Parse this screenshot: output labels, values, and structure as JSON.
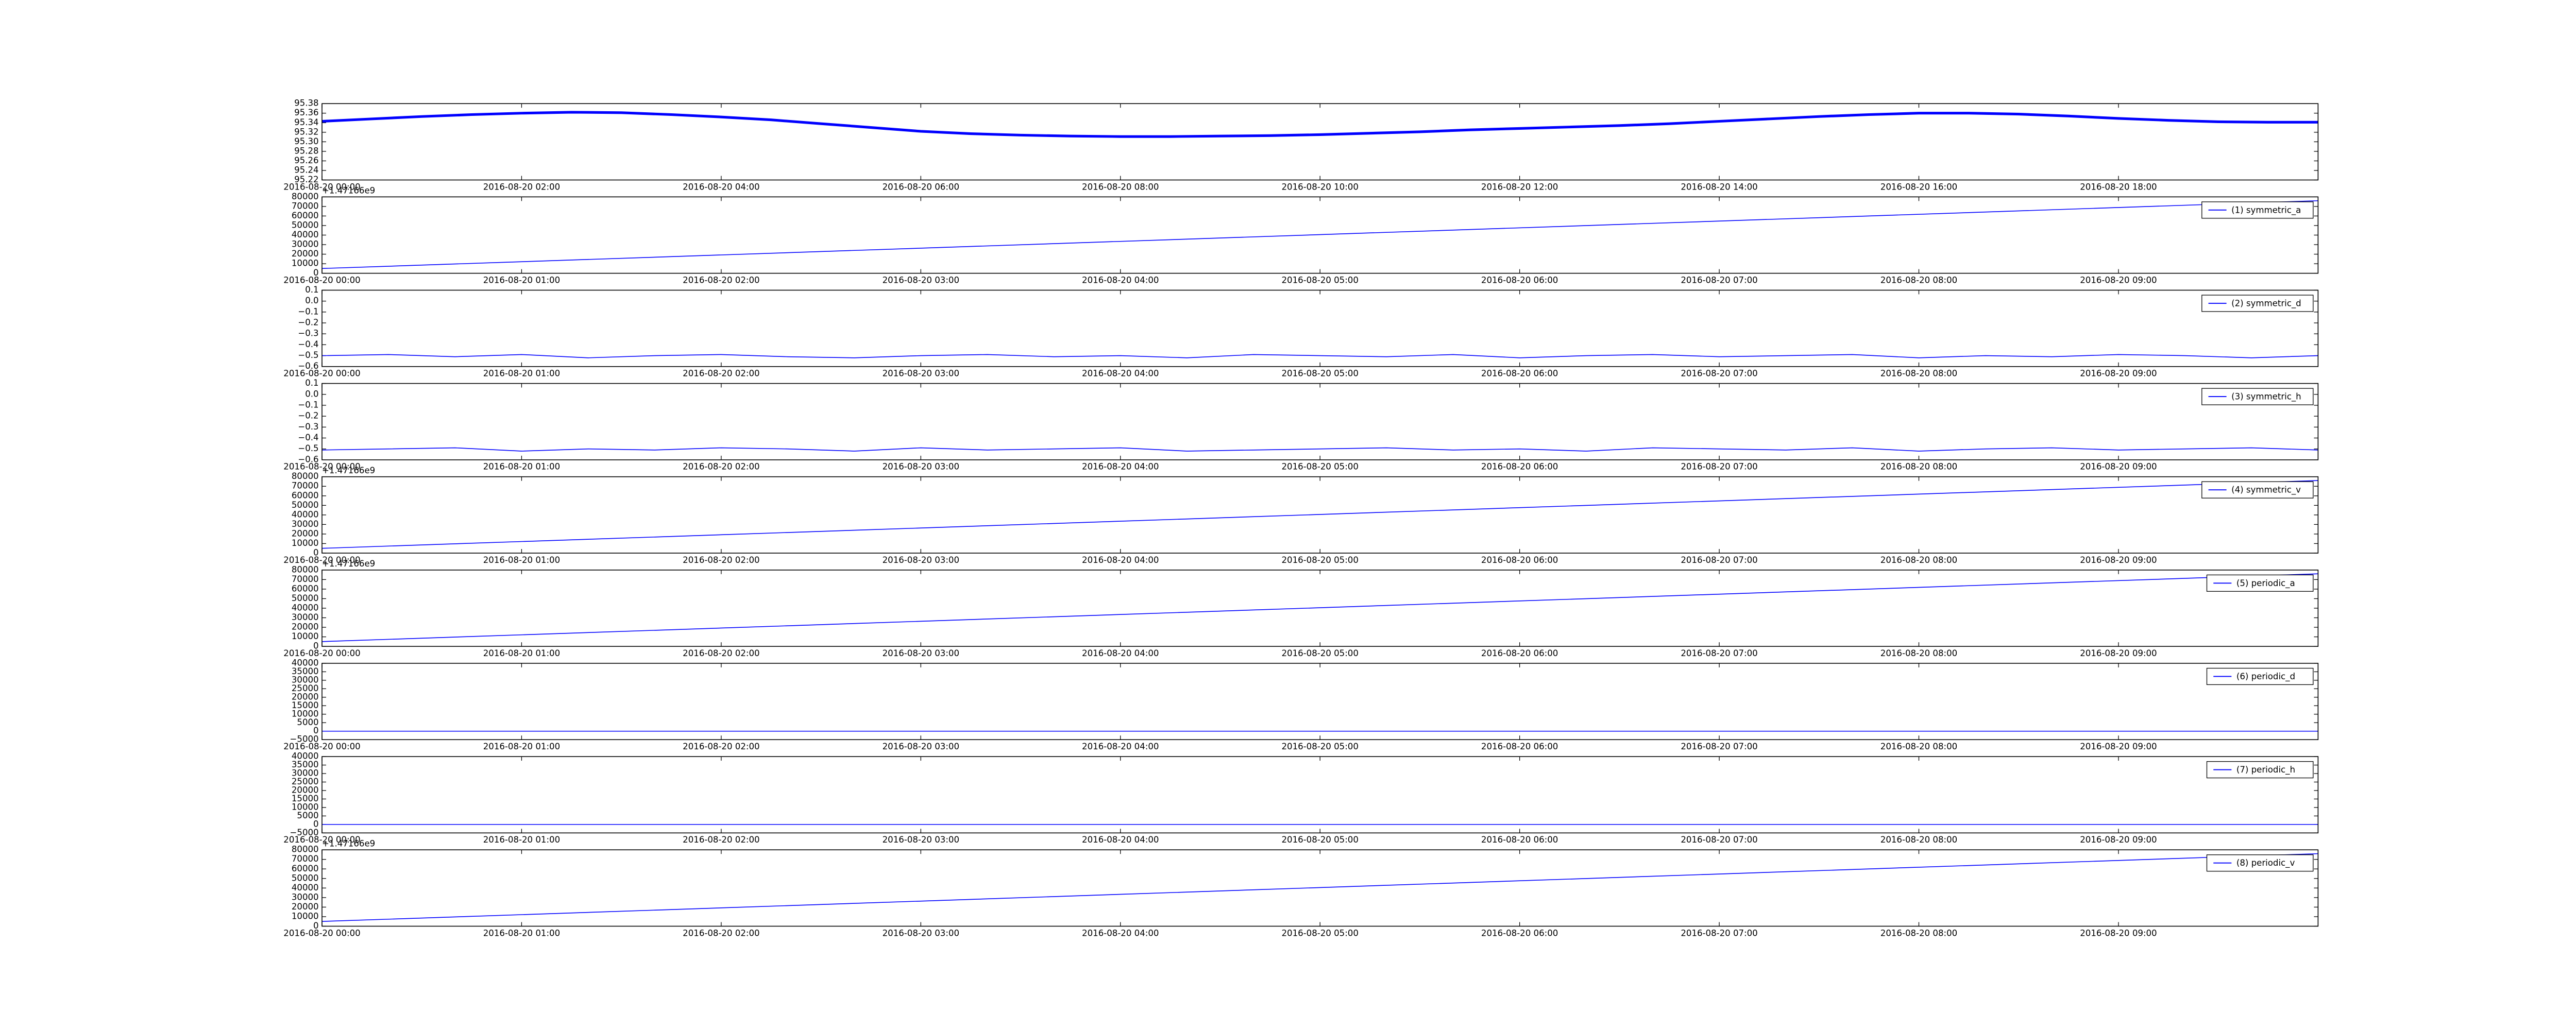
{
  "chart_data": [
    {
      "type": "line",
      "x": [
        "2016-08-20 00:00",
        "2016-08-20 00:30",
        "2016-08-20 01:00",
        "2016-08-20 01:30",
        "2016-08-20 02:00",
        "2016-08-20 02:30",
        "2016-08-20 03:00",
        "2016-08-20 03:30",
        "2016-08-20 04:00",
        "2016-08-20 04:30",
        "2016-08-20 05:00",
        "2016-08-20 05:30",
        "2016-08-20 06:00",
        "2016-08-20 06:30",
        "2016-08-20 07:00",
        "2016-08-20 07:30",
        "2016-08-20 08:00",
        "2016-08-20 08:30",
        "2016-08-20 09:00",
        "2016-08-20 09:30",
        "2016-08-20 10:00",
        "2016-08-20 10:30",
        "2016-08-20 11:00",
        "2016-08-20 11:30",
        "2016-08-20 12:00",
        "2016-08-20 12:30",
        "2016-08-20 13:00",
        "2016-08-20 13:30",
        "2016-08-20 14:00",
        "2016-08-20 14:30",
        "2016-08-20 15:00",
        "2016-08-20 15:30",
        "2016-08-20 16:00",
        "2016-08-20 16:30",
        "2016-08-20 17:00",
        "2016-08-20 17:30",
        "2016-08-20 18:00",
        "2016-08-20 18:30",
        "2016-08-20 19:00",
        "2016-08-20 19:30",
        "2016-08-20 20:00"
      ],
      "series": [
        {
          "color": "#0000ff",
          "values": [
            95.343,
            95.348,
            95.353,
            95.357,
            95.36,
            95.362,
            95.361,
            95.357,
            95.352,
            95.346,
            95.338,
            95.33,
            95.322,
            95.317,
            95.314,
            95.312,
            95.311,
            95.311,
            95.312,
            95.313,
            95.315,
            95.318,
            95.321,
            95.325,
            95.328,
            95.331,
            95.334,
            95.338,
            95.343,
            95.348,
            95.353,
            95.357,
            95.36,
            95.36,
            95.358,
            95.354,
            95.349,
            95.345,
            95.342,
            95.341,
            95.341
          ]
        }
      ],
      "xlim": [
        "2016-08-20 00:00",
        "2016-08-20 20:00"
      ],
      "xticks": [
        "2016-08-20 00:00",
        "2016-08-20 02:00",
        "2016-08-20 04:00",
        "2016-08-20 06:00",
        "2016-08-20 08:00",
        "2016-08-20 10:00",
        "2016-08-20 12:00",
        "2016-08-20 14:00",
        "2016-08-20 16:00",
        "2016-08-20 18:00"
      ],
      "ylim": [
        95.22,
        95.38
      ],
      "yticks": [
        95.22,
        95.24,
        95.26,
        95.28,
        {
          "value": 95.3,
          "label": "95.30"
        },
        95.32,
        95.34,
        95.36,
        95.38
      ]
    },
    {
      "type": "line",
      "offset_text": "+1.47166e9",
      "x": [
        "2016-08-20 00:00",
        "2016-08-20 10:00"
      ],
      "series": [
        {
          "name": "(1) symmetric_a",
          "color": "#0000ff",
          "values": [
            5000,
            76000
          ]
        }
      ],
      "xlim": [
        "2016-08-20 00:00",
        "2016-08-20 10:00"
      ],
      "xticks": [
        "2016-08-20 00:00",
        "2016-08-20 01:00",
        "2016-08-20 02:00",
        "2016-08-20 03:00",
        "2016-08-20 04:00",
        "2016-08-20 05:00",
        "2016-08-20 06:00",
        "2016-08-20 07:00",
        "2016-08-20 08:00",
        "2016-08-20 09:00"
      ],
      "ylim": [
        0,
        80000
      ],
      "yticks": [
        0,
        10000,
        20000,
        30000,
        40000,
        50000,
        60000,
        70000,
        80000
      ],
      "legend": "upper right"
    },
    {
      "type": "line",
      "x": [
        "2016-08-20 00:00",
        "2016-08-20 00:20",
        "2016-08-20 00:40",
        "2016-08-20 01:00",
        "2016-08-20 01:20",
        "2016-08-20 01:40",
        "2016-08-20 02:00",
        "2016-08-20 02:20",
        "2016-08-20 02:40",
        "2016-08-20 03:00",
        "2016-08-20 03:20",
        "2016-08-20 03:40",
        "2016-08-20 04:00",
        "2016-08-20 04:20",
        "2016-08-20 04:40",
        "2016-08-20 05:00",
        "2016-08-20 05:20",
        "2016-08-20 05:40",
        "2016-08-20 06:00",
        "2016-08-20 06:20",
        "2016-08-20 06:40",
        "2016-08-20 07:00",
        "2016-08-20 07:20",
        "2016-08-20 07:40",
        "2016-08-20 08:00",
        "2016-08-20 08:20",
        "2016-08-20 08:40",
        "2016-08-20 09:00",
        "2016-08-20 09:20",
        "2016-08-20 09:40",
        "2016-08-20 10:00"
      ],
      "series": [
        {
          "name": "(2) symmetric_d",
          "color": "#0000ff",
          "values": [
            -0.5,
            -0.49,
            -0.51,
            -0.49,
            -0.52,
            -0.5,
            -0.49,
            -0.51,
            -0.52,
            -0.5,
            -0.49,
            -0.51,
            -0.5,
            -0.52,
            -0.49,
            -0.5,
            -0.51,
            -0.49,
            -0.52,
            -0.5,
            -0.49,
            -0.51,
            -0.5,
            -0.49,
            -0.52,
            -0.5,
            -0.51,
            -0.49,
            -0.5,
            -0.52,
            -0.5
          ]
        }
      ],
      "xlim": [
        "2016-08-20 00:00",
        "2016-08-20 10:00"
      ],
      "xticks": [
        "2016-08-20 00:00",
        "2016-08-20 01:00",
        "2016-08-20 02:00",
        "2016-08-20 03:00",
        "2016-08-20 04:00",
        "2016-08-20 05:00",
        "2016-08-20 06:00",
        "2016-08-20 07:00",
        "2016-08-20 08:00",
        "2016-08-20 09:00"
      ],
      "ylim": [
        -0.6,
        0.1
      ],
      "yticks": [
        {
          "value": -0.6,
          "label": "−0.6"
        },
        {
          "value": -0.5,
          "label": "−0.5"
        },
        {
          "value": -0.4,
          "label": "−0.4"
        },
        {
          "value": -0.3,
          "label": "−0.3"
        },
        {
          "value": -0.2,
          "label": "−0.2"
        },
        {
          "value": -0.1,
          "label": "−0.1"
        },
        {
          "value": 0,
          "label": "0.0"
        },
        0.1
      ],
      "legend": "upper right"
    },
    {
      "type": "line",
      "x": [
        "2016-08-20 00:00",
        "2016-08-20 00:20",
        "2016-08-20 00:40",
        "2016-08-20 01:00",
        "2016-08-20 01:20",
        "2016-08-20 01:40",
        "2016-08-20 02:00",
        "2016-08-20 02:20",
        "2016-08-20 02:40",
        "2016-08-20 03:00",
        "2016-08-20 03:20",
        "2016-08-20 03:40",
        "2016-08-20 04:00",
        "2016-08-20 04:20",
        "2016-08-20 04:40",
        "2016-08-20 05:00",
        "2016-08-20 05:20",
        "2016-08-20 05:40",
        "2016-08-20 06:00",
        "2016-08-20 06:20",
        "2016-08-20 06:40",
        "2016-08-20 07:00",
        "2016-08-20 07:20",
        "2016-08-20 07:40",
        "2016-08-20 08:00",
        "2016-08-20 08:20",
        "2016-08-20 08:40",
        "2016-08-20 09:00",
        "2016-08-20 09:20",
        "2016-08-20 09:40",
        "2016-08-20 10:00"
      ],
      "series": [
        {
          "name": "(3) symmetric_h",
          "color": "#0000ff",
          "values": [
            -0.51,
            -0.5,
            -0.49,
            -0.52,
            -0.5,
            -0.51,
            -0.49,
            -0.5,
            -0.52,
            -0.49,
            -0.51,
            -0.5,
            -0.49,
            -0.52,
            -0.51,
            -0.5,
            -0.49,
            -0.51,
            -0.5,
            -0.52,
            -0.49,
            -0.5,
            -0.51,
            -0.49,
            -0.52,
            -0.5,
            -0.49,
            -0.51,
            -0.5,
            -0.49,
            -0.51
          ]
        }
      ],
      "xlim": [
        "2016-08-20 00:00",
        "2016-08-20 10:00"
      ],
      "xticks": [
        "2016-08-20 00:00",
        "2016-08-20 01:00",
        "2016-08-20 02:00",
        "2016-08-20 03:00",
        "2016-08-20 04:00",
        "2016-08-20 05:00",
        "2016-08-20 06:00",
        "2016-08-20 07:00",
        "2016-08-20 08:00",
        "2016-08-20 09:00"
      ],
      "ylim": [
        -0.6,
        0.1
      ],
      "yticks": [
        {
          "value": -0.6,
          "label": "−0.6"
        },
        {
          "value": -0.5,
          "label": "−0.5"
        },
        {
          "value": -0.4,
          "label": "−0.4"
        },
        {
          "value": -0.3,
          "label": "−0.3"
        },
        {
          "value": -0.2,
          "label": "−0.2"
        },
        {
          "value": -0.1,
          "label": "−0.1"
        },
        {
          "value": 0,
          "label": "0.0"
        },
        0.1
      ],
      "legend": "upper right"
    },
    {
      "type": "line",
      "offset_text": "+1.47166e9",
      "x": [
        "2016-08-20 00:00",
        "2016-08-20 10:00"
      ],
      "series": [
        {
          "name": "(4) symmetric_v",
          "color": "#0000ff",
          "values": [
            5000,
            76000
          ]
        }
      ],
      "xlim": [
        "2016-08-20 00:00",
        "2016-08-20 10:00"
      ],
      "xticks": [
        "2016-08-20 00:00",
        "2016-08-20 01:00",
        "2016-08-20 02:00",
        "2016-08-20 03:00",
        "2016-08-20 04:00",
        "2016-08-20 05:00",
        "2016-08-20 06:00",
        "2016-08-20 07:00",
        "2016-08-20 08:00",
        "2016-08-20 09:00"
      ],
      "ylim": [
        0,
        80000
      ],
      "yticks": [
        0,
        10000,
        20000,
        30000,
        40000,
        50000,
        60000,
        70000,
        80000
      ],
      "legend": "upper right"
    },
    {
      "type": "line",
      "offset_text": "+1.47166e9",
      "x": [
        "2016-08-20 00:00",
        "2016-08-20 10:00"
      ],
      "series": [
        {
          "name": "(5) periodic_a",
          "color": "#0000ff",
          "values": [
            5000,
            76000
          ]
        }
      ],
      "xlim": [
        "2016-08-20 00:00",
        "2016-08-20 10:00"
      ],
      "xticks": [
        "2016-08-20 00:00",
        "2016-08-20 01:00",
        "2016-08-20 02:00",
        "2016-08-20 03:00",
        "2016-08-20 04:00",
        "2016-08-20 05:00",
        "2016-08-20 06:00",
        "2016-08-20 07:00",
        "2016-08-20 08:00",
        "2016-08-20 09:00"
      ],
      "ylim": [
        0,
        80000
      ],
      "yticks": [
        0,
        10000,
        20000,
        30000,
        40000,
        50000,
        60000,
        70000,
        80000
      ],
      "legend": "upper right"
    },
    {
      "type": "line",
      "x": [
        "2016-08-20 00:00",
        "2016-08-20 10:00"
      ],
      "series": [
        {
          "name": "(6) periodic_d",
          "color": "#0000ff",
          "values": [
            0,
            0
          ]
        }
      ],
      "xlim": [
        "2016-08-20 00:00",
        "2016-08-20 10:00"
      ],
      "xticks": [
        "2016-08-20 00:00",
        "2016-08-20 01:00",
        "2016-08-20 02:00",
        "2016-08-20 03:00",
        "2016-08-20 04:00",
        "2016-08-20 05:00",
        "2016-08-20 06:00",
        "2016-08-20 07:00",
        "2016-08-20 08:00",
        "2016-08-20 09:00"
      ],
      "ylim": [
        -5000,
        40000
      ],
      "yticks": [
        {
          "value": -5000,
          "label": "−5000"
        },
        0,
        5000,
        10000,
        15000,
        20000,
        25000,
        30000,
        35000,
        40000
      ],
      "legend": "upper right"
    },
    {
      "type": "line",
      "x": [
        "2016-08-20 00:00",
        "2016-08-20 10:00"
      ],
      "series": [
        {
          "name": "(7) periodic_h",
          "color": "#0000ff",
          "values": [
            0,
            0
          ]
        }
      ],
      "xlim": [
        "2016-08-20 00:00",
        "2016-08-20 10:00"
      ],
      "xticks": [
        "2016-08-20 00:00",
        "2016-08-20 01:00",
        "2016-08-20 02:00",
        "2016-08-20 03:00",
        "2016-08-20 04:00",
        "2016-08-20 05:00",
        "2016-08-20 06:00",
        "2016-08-20 07:00",
        "2016-08-20 08:00",
        "2016-08-20 09:00"
      ],
      "ylim": [
        -5000,
        40000
      ],
      "yticks": [
        {
          "value": -5000,
          "label": "−5000"
        },
        0,
        5000,
        10000,
        15000,
        20000,
        25000,
        30000,
        35000,
        40000
      ],
      "legend": "upper right"
    },
    {
      "type": "line",
      "offset_text": "+1.47166e9",
      "x": [
        "2016-08-20 00:00",
        "2016-08-20 10:00"
      ],
      "series": [
        {
          "name": "(8) periodic_v",
          "color": "#0000ff",
          "values": [
            5000,
            76000
          ]
        }
      ],
      "xlim": [
        "2016-08-20 00:00",
        "2016-08-20 10:00"
      ],
      "xticks": [
        "2016-08-20 00:00",
        "2016-08-20 01:00",
        "2016-08-20 02:00",
        "2016-08-20 03:00",
        "2016-08-20 04:00",
        "2016-08-20 05:00",
        "2016-08-20 06:00",
        "2016-08-20 07:00",
        "2016-08-20 08:00",
        "2016-08-20 09:00"
      ],
      "ylim": [
        0,
        80000
      ],
      "yticks": [
        0,
        10000,
        20000,
        30000,
        40000,
        50000,
        60000,
        70000,
        80000
      ],
      "legend": "upper right"
    }
  ]
}
